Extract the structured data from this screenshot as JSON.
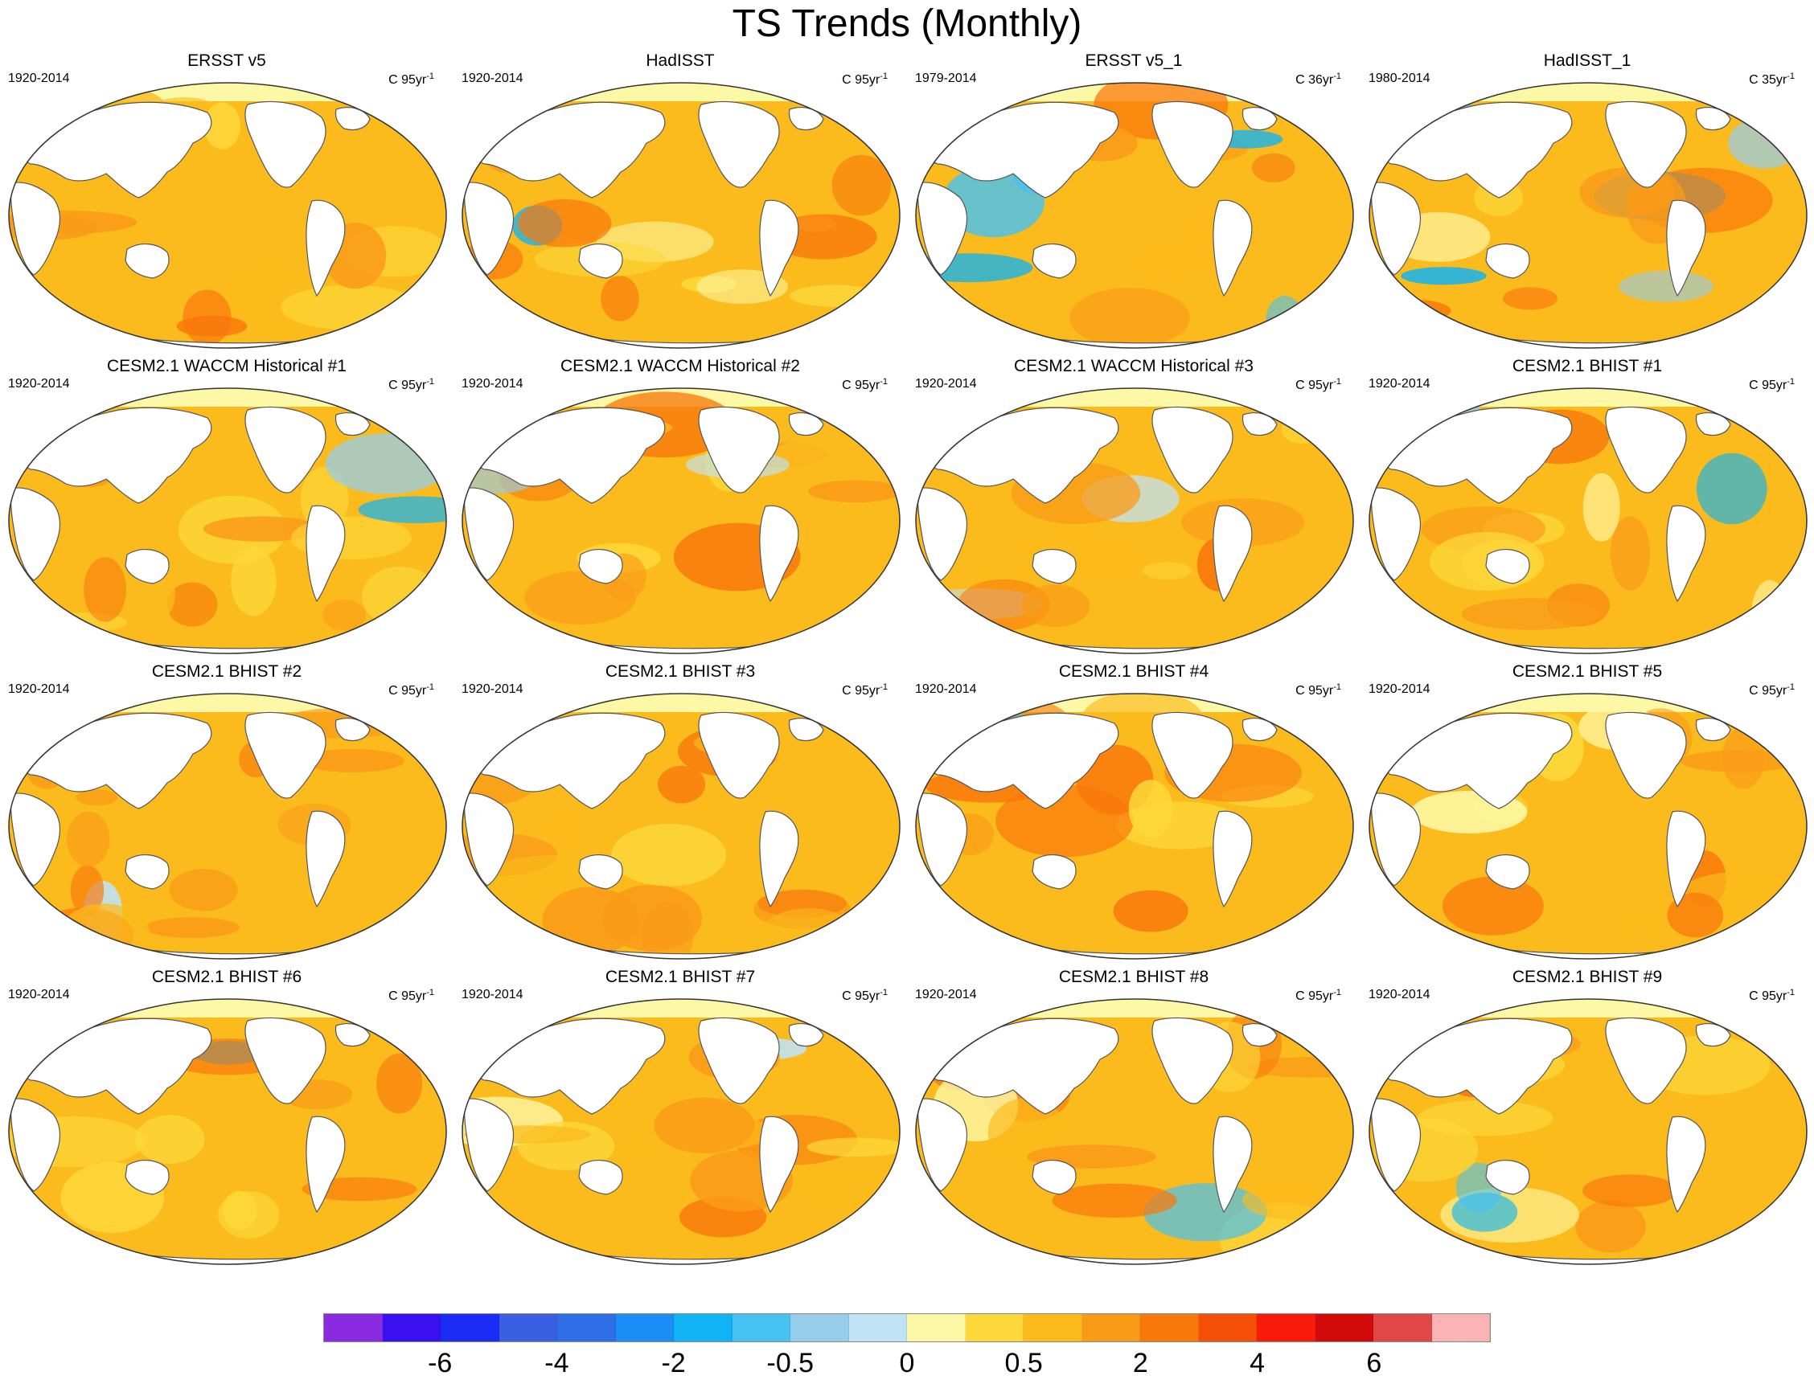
{
  "figure": {
    "title": "TS Trends (Monthly)"
  },
  "panels": [
    {
      "title": "ERSST v5",
      "period": "1920-2014",
      "unit_base": "C 95yr",
      "unit_exp": "-1"
    },
    {
      "title": "HadISST",
      "period": "1920-2014",
      "unit_base": "C 95yr",
      "unit_exp": "-1"
    },
    {
      "title": "ERSST v5_1",
      "period": "1979-2014",
      "unit_base": "C 36yr",
      "unit_exp": "-1"
    },
    {
      "title": "HadISST_1",
      "period": "1980-2014",
      "unit_base": "C 35yr",
      "unit_exp": "-1"
    },
    {
      "title": "CESM2.1 WACCM Historical #1",
      "period": "1920-2014",
      "unit_base": "C 95yr",
      "unit_exp": "-1"
    },
    {
      "title": "CESM2.1 WACCM Historical #2",
      "period": "1920-2014",
      "unit_base": "C 95yr",
      "unit_exp": "-1"
    },
    {
      "title": "CESM2.1 WACCM Historical #3",
      "period": "1920-2014",
      "unit_base": "C 95yr",
      "unit_exp": "-1"
    },
    {
      "title": "CESM2.1 BHIST #1",
      "period": "1920-2014",
      "unit_base": "C 95yr",
      "unit_exp": "-1"
    },
    {
      "title": "CESM2.1 BHIST #2",
      "period": "1920-2014",
      "unit_base": "C 95yr",
      "unit_exp": "-1"
    },
    {
      "title": "CESM2.1 BHIST #3",
      "period": "1920-2014",
      "unit_base": "C 95yr",
      "unit_exp": "-1"
    },
    {
      "title": "CESM2.1 BHIST #4",
      "period": "1920-2014",
      "unit_base": "C 95yr",
      "unit_exp": "-1"
    },
    {
      "title": "CESM2.1 BHIST #5",
      "period": "1920-2014",
      "unit_base": "C 95yr",
      "unit_exp": "-1"
    },
    {
      "title": "CESM2.1 BHIST #6",
      "period": "1920-2014",
      "unit_base": "C 95yr",
      "unit_exp": "-1"
    },
    {
      "title": "CESM2.1 BHIST #7",
      "period": "1920-2014",
      "unit_base": "C 95yr",
      "unit_exp": "-1"
    },
    {
      "title": "CESM2.1 BHIST #8",
      "period": "1920-2014",
      "unit_base": "C 95yr",
      "unit_exp": "-1"
    },
    {
      "title": "CESM2.1 BHIST #9",
      "period": "1920-2014",
      "unit_base": "C 95yr",
      "unit_exp": "-1"
    }
  ],
  "colorbar": {
    "colors": [
      "#8a2be2",
      "#3a10f0",
      "#1a2cf5",
      "#3860e0",
      "#2e6fe8",
      "#1c8ef5",
      "#10b4f5",
      "#48c2f2",
      "#96cdea",
      "#bfe3f5",
      "#fdf8a6",
      "#fcd83a",
      "#fbbb1c",
      "#fa9b18",
      "#f9780c",
      "#f65008",
      "#fa1a0a",
      "#d20a0a",
      "#e04848",
      "#fbb4b4"
    ],
    "tick_labels": [
      "-6",
      "-4",
      "-2",
      "-0.5",
      "0",
      "0.5",
      "2",
      "4",
      "6"
    ],
    "tick_boundary_index": [
      2,
      4,
      6,
      8,
      10,
      12,
      14,
      16,
      18
    ]
  },
  "map_style": {
    "ocean_base": "#fbbb1c",
    "land_color": "#ffffff",
    "coast_color": "#555555"
  }
}
